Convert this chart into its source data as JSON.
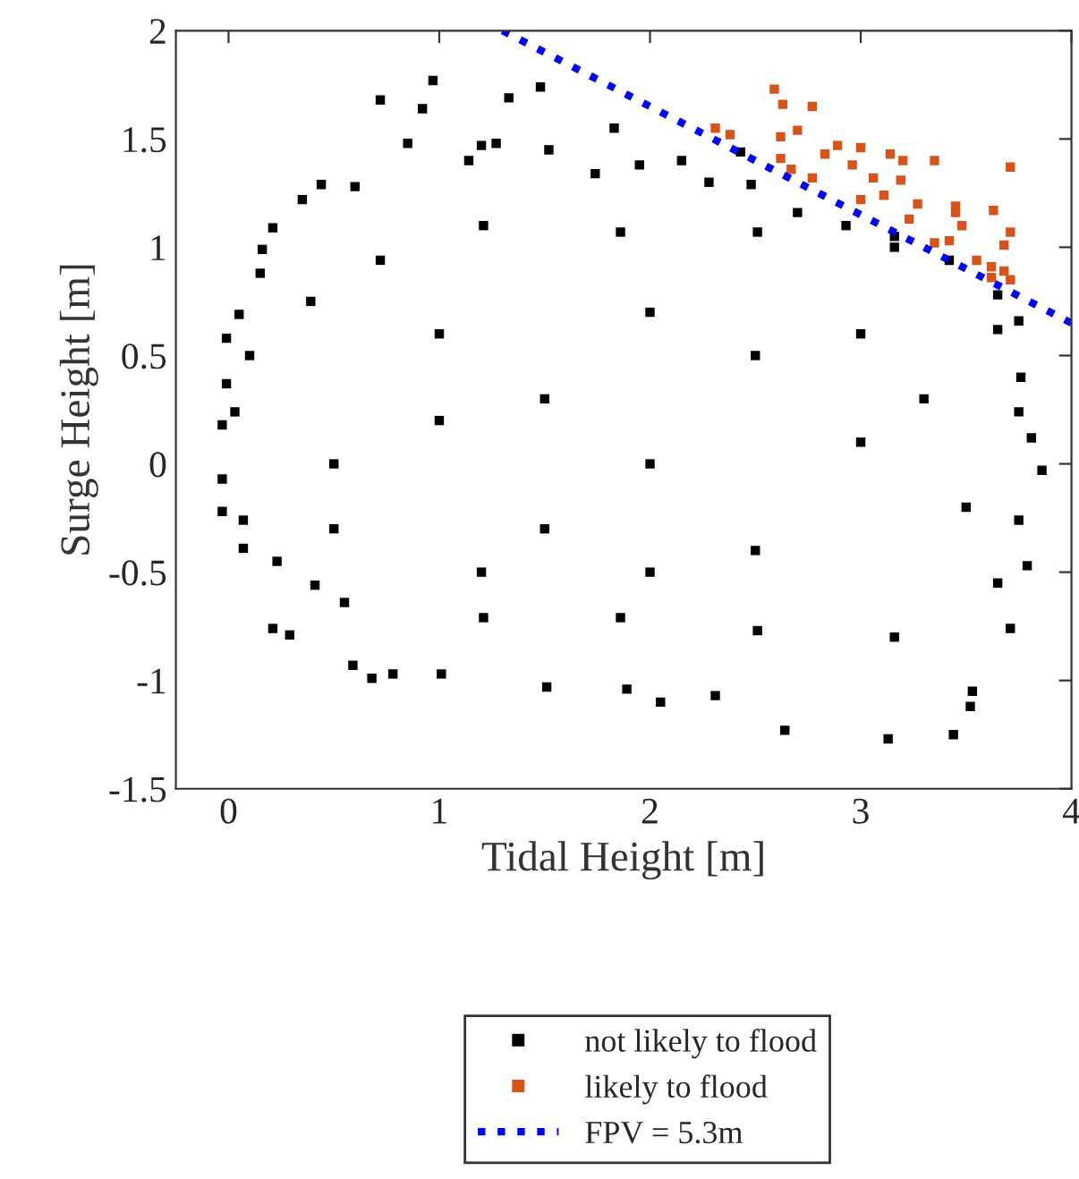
{
  "chart_data": {
    "type": "scatter",
    "xlabel": "Tidal Height [m]",
    "ylabel": "Surge Height [m]",
    "xlim": [
      -0.25,
      4
    ],
    "ylim": [
      -1.5,
      2
    ],
    "xticks": [
      0,
      1,
      2,
      3,
      4
    ],
    "yticks": [
      -1.5,
      -1,
      -0.5,
      0,
      0.5,
      1,
      1.5,
      2
    ],
    "grid": false,
    "legend": "bottom",
    "marker": "square",
    "series": [
      {
        "name": "not likely to flood",
        "color": "#000000",
        "x": [
          0.97,
          0.72,
          0.92,
          1.33,
          1.48,
          1.83,
          1.52,
          0.85,
          0.44,
          1.2,
          0.6,
          0.35,
          0.21,
          0.16,
          0.15,
          0.05,
          -0.01,
          -0.01,
          -0.03,
          -0.03,
          -0.03,
          0.07,
          0.21,
          0.29,
          0.41,
          0.59,
          0.68,
          0.78,
          1.01,
          1.51,
          1.89,
          2.05,
          2.31,
          2.64,
          3.13,
          3.44,
          3.52,
          3.53,
          3.71,
          3.79,
          3.86,
          3.81,
          3.76,
          3.75,
          3.65,
          3.42,
          3.16,
          2.93,
          2.7,
          2.43,
          2.15,
          1.95,
          1.74,
          2.48,
          2.28,
          1.27,
          1.14,
          0.03,
          0.1,
          0.39,
          0.72,
          1.21,
          1.86,
          2.51,
          3.16,
          3.65,
          3.75,
          3.75,
          3.65,
          3.16,
          2.51,
          1.86,
          1.21,
          0.55,
          0.23,
          0.07,
          1.0,
          2.0,
          3.0,
          1.5,
          2.5,
          0.5,
          3.5,
          1.0,
          2.0,
          3.0,
          1.5,
          2.5,
          0.5,
          3.3,
          2.0,
          1.2
        ],
        "values": [
          1.77,
          1.68,
          1.64,
          1.69,
          1.74,
          1.55,
          1.45,
          1.48,
          1.29,
          1.47,
          1.28,
          1.22,
          1.09,
          0.99,
          0.88,
          0.69,
          0.58,
          0.37,
          0.18,
          -0.07,
          -0.22,
          -0.39,
          -0.76,
          -0.79,
          -0.56,
          -0.93,
          -0.99,
          -0.97,
          -0.97,
          -1.03,
          -1.04,
          -1.1,
          -1.07,
          -1.23,
          -1.27,
          -1.25,
          -1.12,
          -1.05,
          -0.76,
          -0.47,
          -0.03,
          0.12,
          0.4,
          0.66,
          0.78,
          0.94,
          1.05,
          1.1,
          1.16,
          1.44,
          1.4,
          1.38,
          1.34,
          1.29,
          1.3,
          1.48,
          1.4,
          0.24,
          0.5,
          0.75,
          0.94,
          1.1,
          1.07,
          1.07,
          1.0,
          0.62,
          0.24,
          -0.26,
          -0.55,
          -0.8,
          -0.77,
          -0.71,
          -0.71,
          -0.64,
          -0.45,
          -0.26,
          0.2,
          0.0,
          0.1,
          -0.3,
          0.5,
          0.0,
          -0.2,
          0.6,
          0.7,
          0.6,
          0.3,
          -0.4,
          -0.3,
          0.3,
          -0.5,
          -0.5
        ]
      },
      {
        "name": "likely to flood",
        "color": "#d95319",
        "x": [
          2.31,
          2.38,
          2.59,
          2.63,
          2.77,
          2.7,
          2.62,
          2.89,
          3.0,
          2.62,
          2.67,
          2.77,
          2.83,
          2.96,
          3.14,
          3.2,
          3.35,
          3.06,
          3.0,
          3.11,
          3.19,
          3.27,
          3.45,
          3.45,
          3.63,
          3.71,
          3.23,
          3.48,
          3.71,
          3.42,
          3.35,
          3.68,
          3.55,
          3.62,
          3.68,
          3.71,
          3.62
        ],
        "values": [
          1.55,
          1.52,
          1.73,
          1.66,
          1.65,
          1.54,
          1.51,
          1.47,
          1.46,
          1.41,
          1.36,
          1.32,
          1.43,
          1.38,
          1.43,
          1.4,
          1.4,
          1.32,
          1.22,
          1.24,
          1.31,
          1.2,
          1.19,
          1.16,
          1.17,
          1.37,
          1.13,
          1.1,
          1.07,
          1.03,
          1.02,
          1.01,
          0.94,
          0.91,
          0.89,
          0.85,
          0.86
        ]
      },
      {
        "name": "FPV = 5.3m",
        "type": "line",
        "marker": "none",
        "color": "#0000ff",
        "line_style": "dotted",
        "x": [
          1.3,
          4
        ],
        "values": [
          2,
          0.65
        ]
      }
    ]
  }
}
